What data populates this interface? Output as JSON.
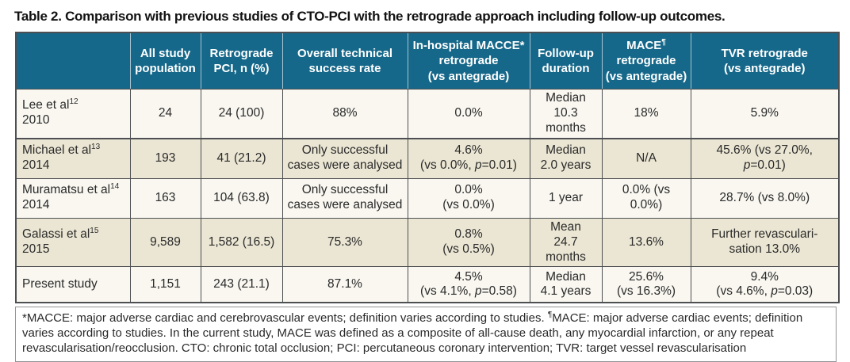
{
  "page": {
    "title": "Table 2. Comparison with previous studies of CTO-PCI with the retrograde approach including follow-up outcomes."
  },
  "colors": {
    "header_bg": "#16688a",
    "header_text": "#ffffff",
    "header_divider": "#a8c3d1",
    "row_light": "#f9f7f0",
    "row_beige": "#ebe6d3",
    "border_dark": "#4d4f52",
    "footnote_border": "#919396",
    "body_text": "#2a2a2a"
  },
  "table": {
    "header": [
      "",
      "All study<br>population",
      "Retrograde<br>PCI, n (%)",
      "Overall technical<br>success rate",
      "In-hospital MACCE*<br>retrograde<br>(vs antegrade)",
      "Follow-up<br>duration",
      "MACE<sup>¶</sup><br>retrograde<br>(vs antegrade)",
      "TVR retrograde<br>(vs antegrade)"
    ],
    "rows": [
      {
        "study": "Lee et al<sup>12</sup><br>2010",
        "all_study_population": "24",
        "retrograde_pci_n_pct": "24 (100)",
        "overall_technical_success_rate": "88%",
        "in_hospital_macce": "0.0%",
        "follow_up_duration": "Median<br>10.3 months",
        "mace": "18%",
        "tvr": "5.9%"
      },
      {
        "study": "Michael et al<sup>13</sup><br>2014",
        "all_study_population": "193",
        "retrograde_pci_n_pct": "41 (21.2)",
        "overall_technical_success_rate": "Only successful<br>cases were analysed",
        "in_hospital_macce": "4.6%<br>(vs 0.0%, <i>p</i>=0.01)",
        "follow_up_duration": "Median<br>2.0 years",
        "mace": "N/A",
        "tvr": "45.6% (vs 27.0%,<br><i>p</i>=0.01)"
      },
      {
        "study": "Muramatsu et al<sup>14</sup><br>2014",
        "all_study_population": "163",
        "retrograde_pci_n_pct": "104 (63.8)",
        "overall_technical_success_rate": "Only successful<br>cases were analysed",
        "in_hospital_macce": "0.0%<br>(vs 0.0%)",
        "follow_up_duration": "1 year",
        "mace": "0.0% (vs 0.0%)",
        "tvr": "28.7% (vs 8.0%)"
      },
      {
        "study": "Galassi et al<sup>15</sup><br>2015",
        "all_study_population": "9,589",
        "retrograde_pci_n_pct": "1,582 (16.5)",
        "overall_technical_success_rate": "75.3%",
        "in_hospital_macce": "0.8%<br>(vs 0.5%)",
        "follow_up_duration": "Mean<br>24.7 months",
        "mace": "13.6%",
        "tvr": "Further revasculari-<br>sation 13.0%"
      },
      {
        "study": "Present study",
        "all_study_population": "1,151",
        "retrograde_pci_n_pct": "243 (21.1)",
        "overall_technical_success_rate": "87.1%",
        "in_hospital_macce": "4.5%<br>(vs 4.1%, <i>p</i>=0.58)",
        "follow_up_duration": "Median<br>4.1 years",
        "mace": "25.6%<br>(vs 16.3%)",
        "tvr": "9.4%<br>(vs 4.6%, <i>p</i>=0.03)"
      }
    ]
  },
  "footnote_html": "*MACCE: major adverse cardiac and cerebrovascular events; definition varies according to studies. <sup>¶</sup>MACE: major adverse cardiac events; definition varies according to studies. In the current study, MACE was defined as a composite of all-cause death, any myocardial infarction, or any repeat revascularisation/reocclusion. CTO: chronic total occlusion; PCI: percutaneous coronary intervention; TVR: target vessel revascularisation"
}
